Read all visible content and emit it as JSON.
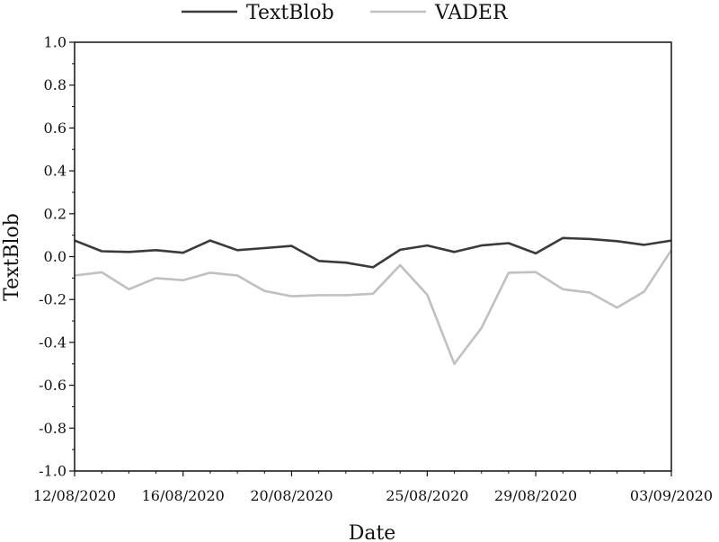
{
  "chart_data": {
    "type": "line",
    "xlabel": "Date",
    "ylabel": "TextBlob",
    "ylim": [
      -1.0,
      1.0
    ],
    "yticks": [
      "-1.0",
      "-0.8",
      "-0.6",
      "-0.4",
      "-0.2",
      "0.0",
      "0.2",
      "0.4",
      "0.6",
      "0.8",
      "1.0"
    ],
    "xticks": [
      "12/08/2020",
      "16/08/2020",
      "20/08/2020",
      "25/08/2020",
      "29/08/2020",
      "03/09/2020"
    ],
    "x": [
      "12/08/2020",
      "13/08/2020",
      "14/08/2020",
      "15/08/2020",
      "16/08/2020",
      "17/08/2020",
      "18/08/2020",
      "19/08/2020",
      "20/08/2020",
      "21/08/2020",
      "22/08/2020",
      "23/08/2020",
      "24/08/2020",
      "25/08/2020",
      "26/08/2020",
      "27/08/2020",
      "28/08/2020",
      "29/08/2020",
      "30/08/2020",
      "31/08/2020",
      "01/09/2020",
      "02/09/2020",
      "03/09/2020"
    ],
    "legend_position": "top",
    "grid": false,
    "series": [
      {
        "name": "TextBlob",
        "color": "#3a3a3a",
        "values": [
          0.075,
          0.025,
          0.022,
          0.03,
          0.018,
          0.075,
          0.03,
          0.04,
          0.05,
          -0.02,
          -0.028,
          -0.05,
          0.032,
          0.052,
          0.022,
          0.052,
          0.063,
          0.015,
          0.087,
          0.082,
          0.072,
          0.055,
          0.075
        ]
      },
      {
        "name": "VADER",
        "color": "#c0c0c0",
        "values": [
          -0.088,
          -0.073,
          -0.152,
          -0.1,
          -0.11,
          -0.075,
          -0.088,
          -0.16,
          -0.185,
          -0.18,
          -0.18,
          -0.173,
          -0.04,
          -0.178,
          -0.5,
          -0.333,
          -0.075,
          -0.072,
          -0.152,
          -0.168,
          -0.238,
          -0.163,
          0.03
        ]
      }
    ]
  }
}
